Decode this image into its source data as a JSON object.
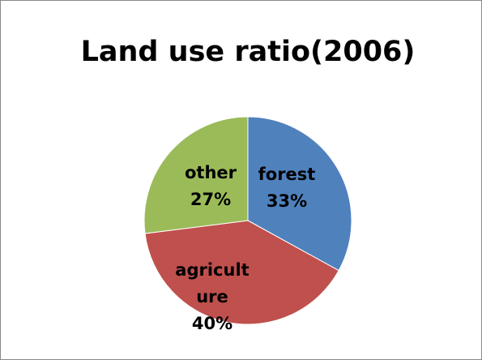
{
  "chart_data": {
    "type": "pie",
    "title": "Land use ratio(2006)",
    "slices": [
      {
        "name": "forest",
        "value": 33,
        "percent_label": "33%",
        "color": "#4F81BD",
        "label_lines": [
          "forest",
          "33%"
        ]
      },
      {
        "name": "agriculture",
        "value": 40,
        "percent_label": "40%",
        "color": "#C0504D",
        "label_lines": [
          "agricult",
          "ure",
          "40%"
        ]
      },
      {
        "name": "other",
        "value": 27,
        "percent_label": "27%",
        "color": "#9BBB59",
        "label_lines": [
          "other",
          "27%"
        ]
      }
    ],
    "legend": "none",
    "start_angle": "12 o'clock",
    "direction": "clockwise"
  }
}
